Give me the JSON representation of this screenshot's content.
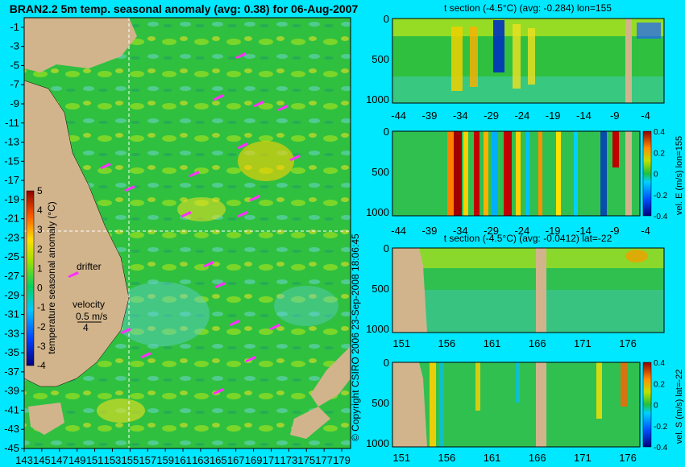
{
  "chart_data": [
    {
      "type": "heatmap",
      "id": "map",
      "title": "BRAN2.2 5m temp. seasonal anomaly (avg: 0.38) for 06-Aug-2007",
      "x_ticks": [
        "143",
        "145",
        "147",
        "149",
        "151",
        "153",
        "155",
        "157",
        "159",
        "161",
        "163",
        "165",
        "167",
        "169",
        "171",
        "173",
        "175",
        "177",
        "179"
      ],
      "y_ticks": [
        "-1",
        "-3",
        "-5",
        "-7",
        "-9",
        "-11",
        "-13",
        "-15",
        "-17",
        "-19",
        "-21",
        "-23",
        "-25",
        "-27",
        "-29",
        "-31",
        "-33",
        "-35",
        "-37",
        "-39",
        "-41",
        "-43",
        "-45"
      ],
      "xlim": [
        143,
        180
      ],
      "ylim": [
        -45,
        0
      ],
      "colorbar": {
        "label": "temperature seasonal anomaly (°C)",
        "ticks": [
          "5",
          "4",
          "3",
          "2",
          "1",
          "0",
          "-1",
          "-2",
          "-3",
          "-4"
        ],
        "range": [
          -4,
          5
        ]
      },
      "annotations": {
        "drifter": "drifter",
        "velocity": "velocity",
        "velocity_scale": "0.5 m/s",
        "velocity_value": "4"
      },
      "crosshair": {
        "lon": 155,
        "lat": -22
      }
    },
    {
      "type": "heatmap",
      "id": "tsec-lon",
      "title": "t section (-4.5°C) (avg: -0.284) lon=155",
      "x_ticks": [
        "-44",
        "-39",
        "-34",
        "-29",
        "-24",
        "-19",
        "-14",
        "-9",
        "-4"
      ],
      "y_ticks": [
        "0",
        "500",
        "1000"
      ],
      "xlim": [
        -45,
        -1
      ],
      "ylim": [
        1050,
        0
      ]
    },
    {
      "type": "heatmap",
      "id": "vel-lon",
      "title": "",
      "x_ticks": [
        "-44",
        "-39",
        "-34",
        "-29",
        "-24",
        "-19",
        "-14",
        "-9",
        "-4"
      ],
      "y_ticks": [
        "0",
        "500",
        "1000"
      ],
      "xlim": [
        -45,
        -1
      ],
      "ylim": [
        1050,
        0
      ],
      "colorbar": {
        "label": "vel. E (m/s) lon=155",
        "ticks": [
          "0.4",
          "0.2",
          "0",
          "-0.2",
          "-0.4"
        ],
        "range": [
          -0.4,
          0.4
        ]
      }
    },
    {
      "type": "heatmap",
      "id": "tsec-lat",
      "title": "t section (-4.5°C) (avg: -0.0412) lat=-22",
      "x_ticks": [
        "151",
        "156",
        "161",
        "166",
        "171",
        "176"
      ],
      "y_ticks": [
        "0",
        "500",
        "1000"
      ],
      "xlim": [
        150,
        180
      ],
      "ylim": [
        1050,
        0
      ]
    },
    {
      "type": "heatmap",
      "id": "vel-lat",
      "title": "",
      "x_ticks": [
        "151",
        "156",
        "161",
        "166",
        "171",
        "176"
      ],
      "y_ticks": [
        "0",
        "500",
        "1000"
      ],
      "xlim": [
        150,
        180
      ],
      "ylim": [
        1050,
        0
      ],
      "colorbar": {
        "label": "vel. S (m/s) lat=-22",
        "ticks": [
          "0.4",
          "0.2",
          "0",
          "-0.2",
          "-0.4"
        ],
        "range": [
          -0.4,
          0.4
        ]
      }
    }
  ],
  "credit": "© Copyright CSIRO 2006   23-Sep-2008 18:06:45"
}
